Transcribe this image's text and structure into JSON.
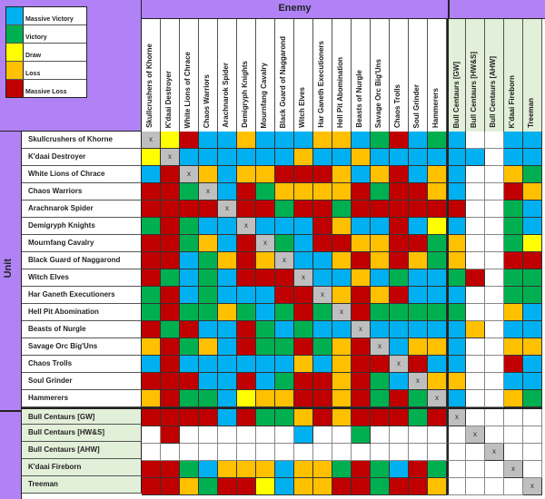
{
  "chart_data": {
    "type": "heatmap",
    "title": "Enemy",
    "xlabel": "Enemy",
    "ylabel": "Unit",
    "legend": [
      {
        "code": "MV",
        "label": "Massive Victory",
        "color": "#00b0f0"
      },
      {
        "code": "V",
        "label": "Victory",
        "color": "#00b050"
      },
      {
        "code": "D",
        "label": "Draw",
        "color": "#ffff00"
      },
      {
        "code": "L",
        "label": "Loss",
        "color": "#ffc000"
      },
      {
        "code": "ML",
        "label": "Massive Loss",
        "color": "#c00000"
      }
    ],
    "columns": [
      "Skullcrushers of Khorne",
      "K'daai Destroyer",
      "White Lions of Chrace",
      "Chaos Warriors",
      "Arachnarok Spider",
      "Demigryph Knights",
      "Mournfang Cavalry",
      "Black Guard of Naggarond",
      "Witch Elves",
      "Har Ganeth Executioners",
      "Hell Pit Abomination",
      "Beasts of Nurgle",
      "Savage Orc Big'Uns",
      "Chaos Trolls",
      "Soul Grinder",
      "Hammerers",
      "Bull Centaurs [GW]",
      "Bull Centaurs [HW&S]",
      "Bull Centaurs [AHW]",
      "K'daai Fireborn",
      "Treeman"
    ],
    "rows": [
      {
        "unit": "Skullcrushers of Khorne",
        "values": [
          "X",
          "D",
          "ML",
          "MV",
          "MV",
          "L",
          "MV",
          "MV",
          "MV",
          "L",
          "L",
          "MV",
          "V",
          "ML",
          "MV",
          "V",
          "MV",
          "",
          "",
          "MV",
          "MV"
        ]
      },
      {
        "unit": "K'daai Destroyer",
        "values": [
          "D",
          "X",
          "MV",
          "MV",
          "MV",
          "MV",
          "MV",
          "MV",
          "L",
          "MV",
          "MV",
          "L",
          "MV",
          "MV",
          "MV",
          "MV",
          "MV",
          "MV",
          "",
          "MV",
          "MV"
        ]
      },
      {
        "unit": "White Lions of Chrace",
        "values": [
          "MV",
          "ML",
          "X",
          "L",
          "MV",
          "L",
          "L",
          "ML",
          "ML",
          "ML",
          "L",
          "MV",
          "L",
          "ML",
          "MV",
          "L",
          "MV",
          "",
          "",
          "L",
          "V"
        ]
      },
      {
        "unit": "Chaos Warriors",
        "values": [
          "ML",
          "ML",
          "V",
          "X",
          "MV",
          "ML",
          "V",
          "L",
          "L",
          "L",
          "L",
          "ML",
          "V",
          "ML",
          "ML",
          "L",
          "MV",
          "",
          "",
          "ML",
          "L"
        ]
      },
      {
        "unit": "Arachnarok Spider",
        "values": [
          "ML",
          "ML",
          "ML",
          "ML",
          "X",
          "ML",
          "ML",
          "V",
          "ML",
          "ML",
          "V",
          "ML",
          "ML",
          "ML",
          "ML",
          "ML",
          "ML",
          "",
          "",
          "V",
          "MV"
        ]
      },
      {
        "unit": "Demigryph Knights",
        "values": [
          "V",
          "ML",
          "V",
          "MV",
          "MV",
          "X",
          "MV",
          "MV",
          "MV",
          "ML",
          "L",
          "MV",
          "MV",
          "ML",
          "MV",
          "D",
          "MV",
          "",
          "",
          "V",
          "MV"
        ]
      },
      {
        "unit": "Mournfang Cavalry",
        "values": [
          "ML",
          "ML",
          "V",
          "L",
          "MV",
          "ML",
          "X",
          "V",
          "MV",
          "ML",
          "ML",
          "L",
          "L",
          "ML",
          "ML",
          "V",
          "L",
          "",
          "",
          "V",
          "D"
        ]
      },
      {
        "unit": "Black Guard of Naggarond",
        "values": [
          "ML",
          "ML",
          "MV",
          "V",
          "L",
          "ML",
          "L",
          "X",
          "MV",
          "MV",
          "L",
          "ML",
          "L",
          "ML",
          "L",
          "V",
          "L",
          "",
          "",
          "ML",
          "ML"
        ]
      },
      {
        "unit": "Witch Elves",
        "values": [
          "ML",
          "V",
          "MV",
          "V",
          "MV",
          "ML",
          "ML",
          "ML",
          "X",
          "MV",
          "MV",
          "L",
          "MV",
          "V",
          "MV",
          "MV",
          "V",
          "ML",
          "",
          "V",
          "V"
        ]
      },
      {
        "unit": "Har Ganeth Executioners",
        "values": [
          "V",
          "ML",
          "MV",
          "V",
          "MV",
          "MV",
          "MV",
          "ML",
          "ML",
          "X",
          "L",
          "ML",
          "L",
          "ML",
          "MV",
          "MV",
          "MV",
          "",
          "",
          "V",
          "V"
        ]
      },
      {
        "unit": "Hell Pit Abomination",
        "values": [
          "V",
          "ML",
          "V",
          "V",
          "L",
          "V",
          "MV",
          "V",
          "ML",
          "V",
          "X",
          "ML",
          "V",
          "V",
          "V",
          "V",
          "V",
          "",
          "",
          "L",
          "MV"
        ]
      },
      {
        "unit": "Beasts of Nurgle",
        "values": [
          "ML",
          "V",
          "ML",
          "MV",
          "MV",
          "ML",
          "V",
          "MV",
          "V",
          "MV",
          "MV",
          "X",
          "MV",
          "MV",
          "MV",
          "MV",
          "MV",
          "L",
          "",
          "MV",
          "MV"
        ]
      },
      {
        "unit": "Savage Orc Big'Uns",
        "values": [
          "L",
          "ML",
          "V",
          "L",
          "MV",
          "ML",
          "V",
          "V",
          "ML",
          "V",
          "L",
          "ML",
          "X",
          "MV",
          "L",
          "L",
          "MV",
          "",
          "",
          "L",
          "L"
        ]
      },
      {
        "unit": "Chaos Trolls",
        "values": [
          "MV",
          "ML",
          "MV",
          "MV",
          "MV",
          "MV",
          "MV",
          "MV",
          "L",
          "MV",
          "L",
          "ML",
          "ML",
          "X",
          "ML",
          "MV",
          "MV",
          "",
          "",
          "ML",
          "MV"
        ]
      },
      {
        "unit": "Soul Grinder",
        "values": [
          "ML",
          "ML",
          "ML",
          "MV",
          "MV",
          "ML",
          "MV",
          "V",
          "ML",
          "ML",
          "L",
          "ML",
          "V",
          "MV",
          "X",
          "L",
          "L",
          "",
          "",
          "MV",
          "MV"
        ]
      },
      {
        "unit": "Hammerers",
        "values": [
          "L",
          "ML",
          "V",
          "V",
          "MV",
          "D",
          "L",
          "L",
          "ML",
          "ML",
          "L",
          "ML",
          "V",
          "ML",
          "V",
          "X",
          "MV",
          "",
          "",
          "L",
          "V"
        ]
      },
      {
        "unit": "Bull Centaurs [GW]",
        "values": [
          "ML",
          "ML",
          "ML",
          "ML",
          "MV",
          "ML",
          "V",
          "V",
          "L",
          "ML",
          "L",
          "ML",
          "ML",
          "ML",
          "V",
          "ML",
          "X",
          "",
          "",
          "",
          ""
        ]
      },
      {
        "unit": "Bull Centaurs [HW&S]",
        "values": [
          "",
          "ML",
          "",
          "",
          "",
          "",
          "",
          "",
          "MV",
          "",
          "",
          "V",
          "",
          "",
          "",
          "",
          "",
          "X",
          "",
          "",
          ""
        ]
      },
      {
        "unit": "Bull Centaurs [AHW]",
        "values": [
          "",
          "",
          "",
          "",
          "",
          "",
          "",
          "",
          "",
          "",
          "",
          "",
          "",
          "",
          "",
          "",
          "",
          "",
          "X",
          "",
          ""
        ]
      },
      {
        "unit": "K'daai Fireborn",
        "values": [
          "ML",
          "ML",
          "V",
          "MV",
          "L",
          "L",
          "L",
          "MV",
          "L",
          "L",
          "V",
          "ML",
          "V",
          "MV",
          "ML",
          "V",
          "",
          "",
          "",
          "X",
          ""
        ]
      },
      {
        "unit": "Treeman",
        "values": [
          "ML",
          "ML",
          "L",
          "V",
          "ML",
          "ML",
          "D",
          "MV",
          "L",
          "L",
          "ML",
          "ML",
          "V",
          "ML",
          "ML",
          "L",
          "",
          "",
          "",
          "",
          "X"
        ]
      }
    ]
  },
  "header": {
    "enemy_label": "Enemy",
    "unit_label": "Unit"
  }
}
